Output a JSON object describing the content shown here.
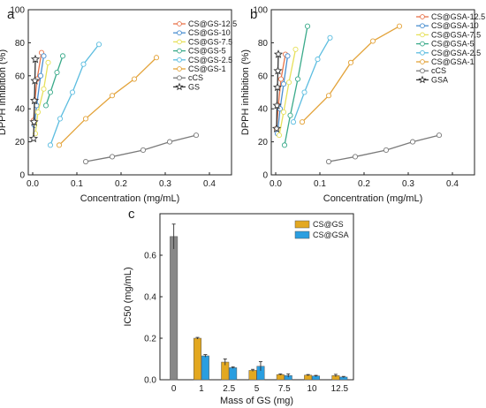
{
  "chart_data": [
    {
      "panel": "a",
      "type": "line",
      "xlabel": "Concentration (mg/mL)",
      "ylabel": "DPPH inhibition (%)",
      "xlim": [
        -0.01,
        0.45
      ],
      "ylim": [
        0,
        100
      ],
      "xticks": [
        "0.0",
        "0.1",
        "0.2",
        "0.3",
        "0.4"
      ],
      "yticks": [
        "0",
        "20",
        "40",
        "60",
        "80",
        "100"
      ],
      "legend_position": "top-right",
      "series": [
        {
          "name": "CS@GS-12.5",
          "color": "#e8734a",
          "marker": "circle",
          "x": [
            0.002,
            0.005,
            0.01,
            0.02
          ],
          "y": [
            33,
            45,
            58,
            74
          ]
        },
        {
          "name": "CS@GS-10",
          "color": "#4a8fd0",
          "marker": "circle",
          "x": [
            0.004,
            0.009,
            0.018,
            0.025
          ],
          "y": [
            30,
            42,
            60,
            72
          ]
        },
        {
          "name": "CS@GS-7.5",
          "color": "#e6e05a",
          "marker": "circle",
          "x": [
            0.006,
            0.012,
            0.025,
            0.035
          ],
          "y": [
            25,
            38,
            52,
            68
          ]
        },
        {
          "name": "CS@GS-5",
          "color": "#3aaa8a",
          "marker": "circle",
          "x": [
            0.03,
            0.04,
            0.055,
            0.068
          ],
          "y": [
            42,
            50,
            62,
            72
          ]
        },
        {
          "name": "CS@GS-2.5",
          "color": "#5cbde0",
          "marker": "circle",
          "x": [
            0.04,
            0.062,
            0.09,
            0.115,
            0.15
          ],
          "y": [
            18,
            34,
            50,
            67,
            79
          ]
        },
        {
          "name": "CS@GS-1",
          "color": "#e3a33a",
          "marker": "circle",
          "x": [
            0.06,
            0.12,
            0.18,
            0.23,
            0.28
          ],
          "y": [
            18,
            34,
            48,
            58,
            71
          ]
        },
        {
          "name": "cCS",
          "color": "#7a7a7a",
          "marker": "circle",
          "x": [
            0.12,
            0.18,
            0.25,
            0.31,
            0.37
          ],
          "y": [
            8,
            11,
            15,
            20,
            24
          ]
        },
        {
          "name": "GS",
          "color": "#333333",
          "marker": "star",
          "x": [
            0.002,
            0.003,
            0.004,
            0.005,
            0.006
          ],
          "y": [
            22,
            32,
            45,
            57,
            70
          ]
        }
      ]
    },
    {
      "panel": "b",
      "type": "line",
      "xlabel": "Concentration (mg/mL)",
      "ylabel": "DPPH inhibition (%)",
      "xlim": [
        -0.01,
        0.45
      ],
      "ylim": [
        0,
        100
      ],
      "xticks": [
        "0.0",
        "0.1",
        "0.2",
        "0.3",
        "0.4"
      ],
      "yticks": [
        "0",
        "20",
        "40",
        "60",
        "80",
        "100"
      ],
      "legend_position": "top-right",
      "series": [
        {
          "name": "CS@GSA-12.5",
          "color": "#e8734a",
          "marker": "circle",
          "x": [
            0.002,
            0.006,
            0.012,
            0.022
          ],
          "y": [
            28,
            42,
            58,
            73
          ]
        },
        {
          "name": "CS@GSA-10",
          "color": "#4a8fd0",
          "marker": "circle",
          "x": [
            0.004,
            0.01,
            0.018,
            0.027
          ],
          "y": [
            25,
            40,
            55,
            72
          ]
        },
        {
          "name": "CS@GSA-7.5",
          "color": "#e6e05a",
          "marker": "circle",
          "x": [
            0.008,
            0.018,
            0.03,
            0.045
          ],
          "y": [
            24,
            38,
            56,
            76
          ]
        },
        {
          "name": "CS@GSA-5",
          "color": "#3aaa8a",
          "marker": "circle",
          "x": [
            0.02,
            0.033,
            0.05,
            0.072
          ],
          "y": [
            18,
            36,
            58,
            90
          ]
        },
        {
          "name": "CS@GSA-2.5",
          "color": "#5cbde0",
          "marker": "circle",
          "x": [
            0.04,
            0.065,
            0.095,
            0.123
          ],
          "y": [
            32,
            50,
            70,
            83
          ]
        },
        {
          "name": "CS@GSA-1",
          "color": "#e3a33a",
          "marker": "circle",
          "x": [
            0.06,
            0.12,
            0.17,
            0.22,
            0.28
          ],
          "y": [
            32,
            48,
            68,
            81,
            90
          ]
        },
        {
          "name": "cCS",
          "color": "#7a7a7a",
          "marker": "circle",
          "x": [
            0.12,
            0.18,
            0.25,
            0.31,
            0.37
          ],
          "y": [
            8,
            11,
            15,
            20,
            24
          ]
        },
        {
          "name": "GSA",
          "color": "#333333",
          "marker": "star",
          "x": [
            0.002,
            0.003,
            0.004,
            0.005,
            0.006
          ],
          "y": [
            28,
            42,
            53,
            63,
            73
          ]
        }
      ]
    },
    {
      "panel": "c",
      "type": "bar",
      "xlabel": "Mass of GS (mg)",
      "ylabel": "IC50 (mg/mL)",
      "ylim": [
        0,
        0.8
      ],
      "yticks": [
        "0.0",
        "0.2",
        "0.4",
        "0.6"
      ],
      "categories": [
        "0",
        "1",
        "2.5",
        "5",
        "7.5",
        "10",
        "12.5"
      ],
      "legend_position": "top-right",
      "single": {
        "category": "0",
        "value": 0.69,
        "error": 0.06,
        "color": "#888888"
      },
      "series": [
        {
          "name": "CS@GS",
          "color": "#e3a820",
          "values": [
            null,
            0.2,
            0.085,
            0.045,
            0.025,
            0.022,
            0.02
          ],
          "errors": [
            null,
            0.004,
            0.015,
            0.005,
            0.003,
            0.003,
            0.006
          ]
        },
        {
          "name": "CS@GSA",
          "color": "#2a9ee0",
          "values": [
            null,
            0.115,
            0.058,
            0.065,
            0.02,
            0.018,
            0.013
          ],
          "errors": [
            null,
            0.006,
            0.004,
            0.022,
            0.008,
            0.003,
            0.003
          ]
        }
      ]
    }
  ]
}
